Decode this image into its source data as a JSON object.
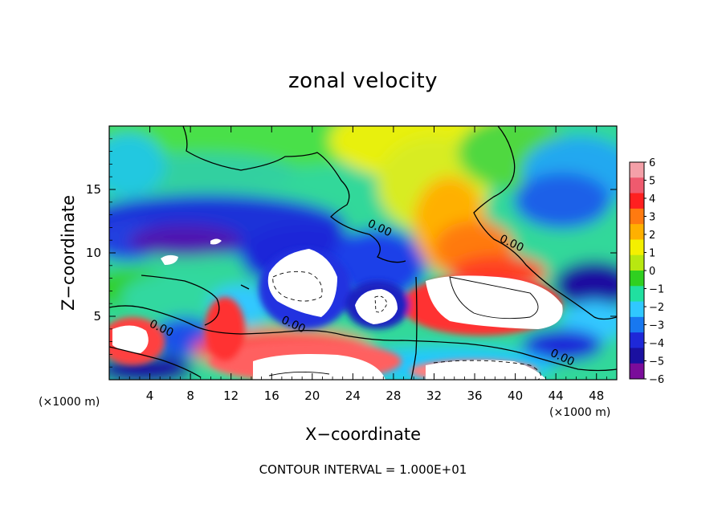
{
  "chart_data": {
    "type": "heatmap",
    "title": "zonal velocity",
    "xlabel": "X−coordinate",
    "ylabel": "Z−coordinate",
    "x_unit_label": "(×1000 m)",
    "xlim": [
      0,
      50
    ],
    "ylim": [
      0,
      20
    ],
    "x_ticks": [
      "4",
      "8",
      "12",
      "16",
      "20",
      "24",
      "28",
      "32",
      "36",
      "40",
      "44",
      "48"
    ],
    "x_tick_values": [
      4,
      8,
      12,
      16,
      20,
      24,
      28,
      32,
      36,
      40,
      44,
      48
    ],
    "y_ticks": [
      "5",
      "10",
      "15"
    ],
    "y_tick_values": [
      5,
      10,
      15
    ],
    "colorbar": {
      "range": [
        -6,
        6
      ],
      "labels": [
        "6",
        "5",
        "4",
        "3",
        "2",
        "1",
        "0",
        "−1",
        "−2",
        "−3",
        "−4",
        "−5",
        "−6"
      ],
      "colors": [
        "#f4a0a8",
        "#ef5a6e",
        "#ff2020",
        "#ff7a10",
        "#ffb000",
        "#f4f000",
        "#b8e810",
        "#30d020",
        "#20e0a0",
        "#30c8ff",
        "#1878f0",
        "#1e28d8",
        "#1a10a0",
        "#7a0c9a"
      ]
    },
    "contour_labels": [
      {
        "text": "0.00",
        "x": 26.5,
        "z": 11.7
      },
      {
        "text": "0.00",
        "x": 18.0,
        "z": 4.1
      },
      {
        "text": "0.00",
        "x": 5.0,
        "z": 3.8
      },
      {
        "text": "0.00",
        "x": 39.5,
        "z": 10.5
      },
      {
        "text": "0.00",
        "x": 44.5,
        "z": 1.5
      }
    ],
    "footnote": "CONTOUR INTERVAL = 1.000E+01"
  }
}
